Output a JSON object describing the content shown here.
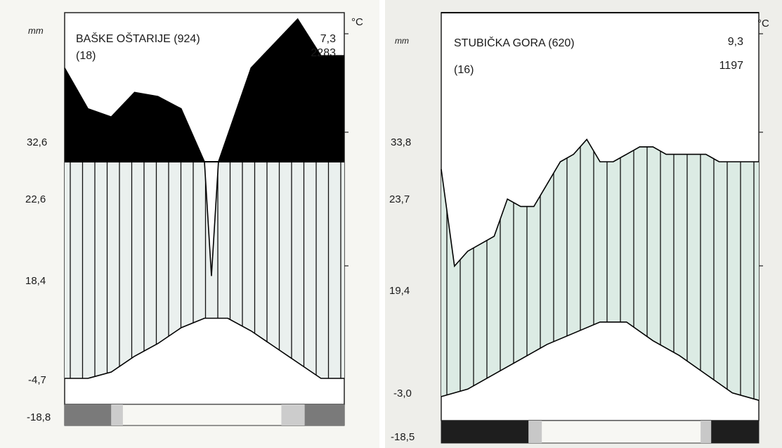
{
  "chart_data": [
    {
      "type": "area",
      "kind": "climate-diagram",
      "station": "BAŠKE OŠTARIJE (924)",
      "years": "(18)",
      "mean_temp": "7,3",
      "annual_precip": "2283",
      "mm_unit": "mm",
      "temp_unit": "°C",
      "y_tick_labels": [
        "32,6",
        "22,6",
        "18,4",
        "-4,7",
        "-18,8"
      ],
      "colors": {
        "humid": "#eaf0ee",
        "perhumid": "#000000",
        "frost_dark": "#7a7a7a",
        "frost_light": "#cccccc"
      },
      "precip_series": [
        {
          "x": 0,
          "y": 73
        },
        {
          "x": 1,
          "y": 63
        },
        {
          "x": 2,
          "y": 61
        },
        {
          "x": 3,
          "y": 67
        },
        {
          "x": 4,
          "y": 66
        },
        {
          "x": 5,
          "y": 63
        },
        {
          "x": 6,
          "y": 50
        },
        {
          "x": 6.3,
          "y": 22
        },
        {
          "x": 6.6,
          "y": 50
        },
        {
          "x": 8,
          "y": 73
        },
        {
          "x": 9,
          "y": 79
        },
        {
          "x": 10,
          "y": 85
        },
        {
          "x": 11,
          "y": 76
        },
        {
          "x": 12,
          "y": 76
        }
      ],
      "temp_series": [
        {
          "x": 0,
          "y": -4
        },
        {
          "x": 1,
          "y": -4
        },
        {
          "x": 2,
          "y": -2
        },
        {
          "x": 3,
          "y": 3
        },
        {
          "x": 4,
          "y": 7
        },
        {
          "x": 5,
          "y": 12
        },
        {
          "x": 6,
          "y": 15
        },
        {
          "x": 7,
          "y": 15
        },
        {
          "x": 8,
          "y": 11
        },
        {
          "x": 9,
          "y": 6
        },
        {
          "x": 10,
          "y": 1
        },
        {
          "x": 11,
          "y": -4
        },
        {
          "x": 12,
          "y": -4
        }
      ],
      "frost_bar": [
        {
          "from": 0,
          "to": 2,
          "tone": "dark"
        },
        {
          "from": 2,
          "to": 2.5,
          "tone": "light"
        },
        {
          "from": 9.3,
          "to": 10.3,
          "tone": "light"
        },
        {
          "from": 10.3,
          "to": 12,
          "tone": "dark"
        }
      ]
    },
    {
      "type": "area",
      "kind": "climate-diagram",
      "station": "STUBIČKA GORA (620)",
      "years": "(16)",
      "mean_temp": "9,3",
      "annual_precip": "1197",
      "mm_unit": "mm",
      "temp_unit": "°C",
      "y_tick_labels": [
        "33,8",
        "23,7",
        "19,4",
        "-3,0",
        "-18,5"
      ],
      "colors": {
        "humid": "#dcebe4",
        "perhumid": "#000000",
        "frost_dark": "#1e1e1e",
        "frost_light": "#c8c8c8"
      },
      "precip_series": [
        {
          "x": 0,
          "y": 29
        },
        {
          "x": 0.5,
          "y": 16
        },
        {
          "x": 1,
          "y": 18
        },
        {
          "x": 2,
          "y": 20
        },
        {
          "x": 2.5,
          "y": 25
        },
        {
          "x": 3,
          "y": 24
        },
        {
          "x": 3.5,
          "y": 24
        },
        {
          "x": 4,
          "y": 27
        },
        {
          "x": 4.5,
          "y": 30
        },
        {
          "x": 5,
          "y": 31
        },
        {
          "x": 5.5,
          "y": 33
        },
        {
          "x": 6,
          "y": 30
        },
        {
          "x": 6.5,
          "y": 30
        },
        {
          "x": 7,
          "y": 31
        },
        {
          "x": 7.5,
          "y": 32
        },
        {
          "x": 8,
          "y": 32
        },
        {
          "x": 8.5,
          "y": 31
        },
        {
          "x": 9,
          "y": 31
        },
        {
          "x": 9.5,
          "y": 31
        },
        {
          "x": 10,
          "y": 31
        },
        {
          "x": 10.5,
          "y": 30
        },
        {
          "x": 11,
          "y": 30
        },
        {
          "x": 12,
          "y": 30
        }
      ],
      "temp_series": [
        {
          "x": 0,
          "y": -3
        },
        {
          "x": 1,
          "y": -1
        },
        {
          "x": 2,
          "y": 3
        },
        {
          "x": 3,
          "y": 7
        },
        {
          "x": 4,
          "y": 11
        },
        {
          "x": 5,
          "y": 14
        },
        {
          "x": 6,
          "y": 17
        },
        {
          "x": 7,
          "y": 17
        },
        {
          "x": 8,
          "y": 12
        },
        {
          "x": 9,
          "y": 8
        },
        {
          "x": 10,
          "y": 3
        },
        {
          "x": 11,
          "y": -2
        },
        {
          "x": 12,
          "y": -4
        }
      ],
      "frost_bar": [
        {
          "from": 0,
          "to": 3.3,
          "tone": "dark"
        },
        {
          "from": 3.3,
          "to": 3.8,
          "tone": "light"
        },
        {
          "from": 9.8,
          "to": 10.2,
          "tone": "light"
        },
        {
          "from": 10.2,
          "to": 12,
          "tone": "dark"
        }
      ]
    }
  ]
}
